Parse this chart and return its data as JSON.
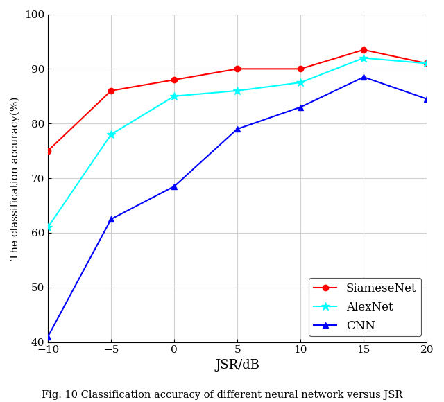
{
  "x": [
    -10,
    -5,
    0,
    5,
    10,
    15,
    20
  ],
  "siamese": [
    75.0,
    86.0,
    88.0,
    90.0,
    90.0,
    93.5,
    91.0
  ],
  "alexnet": [
    61.0,
    78.0,
    85.0,
    86.0,
    87.5,
    92.0,
    91.0
  ],
  "cnn": [
    41.0,
    62.5,
    68.5,
    79.0,
    83.0,
    88.5,
    84.5
  ],
  "siamese_color": "#ff0000",
  "alexnet_color": "#00ffff",
  "cnn_color": "#0000ff",
  "ylabel": "The classification accuracy(%)",
  "xlabel": "JSR/dB",
  "ylim": [
    40,
    100
  ],
  "xlim": [
    -10,
    20
  ],
  "yticks": [
    40,
    50,
    60,
    70,
    80,
    90,
    100
  ],
  "xticks": [
    -10,
    -5,
    0,
    5,
    10,
    15,
    20
  ],
  "legend_labels": [
    "SiameseNet",
    "AlexNet",
    "CNN"
  ],
  "legend_loc": "lower right",
  "linewidth": 1.5,
  "markersize": 6,
  "grid_color": "#d0d0d0",
  "grid_linestyle": "-",
  "grid_alpha": 1.0,
  "caption": "Fig. 10 Classification accuracy of different neural network versus JSR",
  "caption_fontsize": 10.5,
  "bg_color": "#ffffff",
  "font_color": "#000000"
}
